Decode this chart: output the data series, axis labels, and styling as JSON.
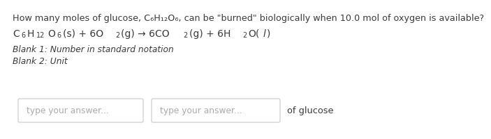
{
  "bg_color": "#ffffff",
  "line1": "How many moles of glucose, C₆H₁₂O₆, can be \"burned\" biologically when 10.0 mol of oxygen is available?",
  "line2_parts": [
    {
      "text": "C",
      "style": "normal"
    },
    {
      "text": "6",
      "style": "sub"
    },
    {
      "text": "H",
      "style": "normal"
    },
    {
      "text": "12",
      "style": "sub"
    },
    {
      "text": "O",
      "style": "normal"
    },
    {
      "text": "6",
      "style": "sub"
    },
    {
      "text": "(s) + 6O",
      "style": "normal"
    },
    {
      "text": "2",
      "style": "sub"
    },
    {
      "text": "(g) → 6CO",
      "style": "normal"
    },
    {
      "text": "2",
      "style": "sub"
    },
    {
      "text": "(g) + 6H",
      "style": "normal"
    },
    {
      "text": "2",
      "style": "sub"
    },
    {
      "text": "O(",
      "style": "normal"
    },
    {
      "text": "l",
      "style": "italic"
    },
    {
      "text": ")",
      "style": "normal"
    }
  ],
  "line3": "Blank 1: Number in standard notation",
  "line4": "Blank 2: Unit",
  "placeholder": "type your answer...",
  "suffix": "of glucose",
  "text_color": "#3a3a3a",
  "placeholder_color": "#aaaaaa",
  "box_border_color": "#c8c8c8",
  "font_size_main": 9.2,
  "font_size_equation": 10.0,
  "font_size_sub": 7.0,
  "font_size_blanks": 8.8,
  "font_size_placeholder": 8.8
}
